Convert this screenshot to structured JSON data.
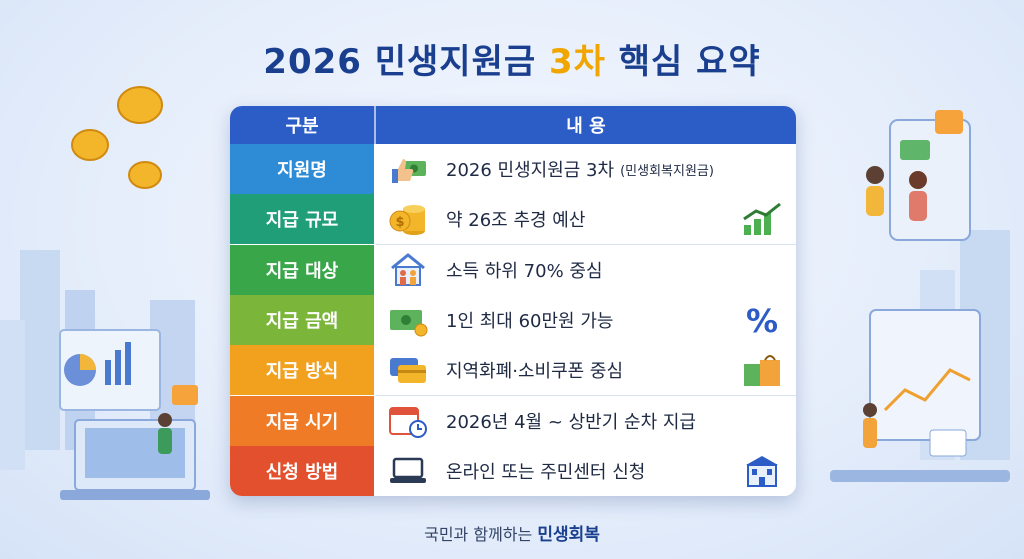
{
  "title_part1": "2026 민생지원금 ",
  "title_part2": "3차",
  "title_part3": " 핵심 요약",
  "header": {
    "left": "구분",
    "right": "내 용"
  },
  "rows": [
    {
      "label": "지원명",
      "value": "2026 민생지원금 3차",
      "note": "(민생회복지원금)",
      "color": "#2e8bd6",
      "icon": "thumbs-up-cash-icon",
      "icon2": ""
    },
    {
      "label": "지급 규모",
      "value": "약 26조 추경 예산",
      "note": "",
      "color": "#1f9e78",
      "icon": "coin-stack-icon",
      "icon2": "growth-chart-icon"
    },
    {
      "label": "지급 대상",
      "value": "소득 하위 70% 중심",
      "note": "",
      "color": "#3aa64a",
      "icon": "family-house-icon",
      "icon2": ""
    },
    {
      "label": "지급 금액",
      "value": "1인 최대 60만원 가능",
      "note": "",
      "color": "#7bb63a",
      "icon": "cash-icon",
      "icon2": "percent-icon"
    },
    {
      "label": "지급 방식",
      "value": "지역화폐·소비쿠폰 중심",
      "note": "",
      "color": "#f2a11f",
      "icon": "cards-icon",
      "icon2": "shopping-bag-icon"
    },
    {
      "label": "지급 시기",
      "value": "2026년 4월 ~ 상반기 순차 지급",
      "note": "",
      "color": "#ef7b26",
      "icon": "calendar-clock-icon",
      "icon2": ""
    },
    {
      "label": "신청 방법",
      "value": "온라인 또는 주민센터 신청",
      "note": "",
      "color": "#e2502d",
      "icon": "laptop-icon",
      "icon2": "building-icon"
    }
  ],
  "footer_prefix": "국민과 함께하는 ",
  "footer_brand": "민생회복",
  "colors": {
    "header": "#2c5cc5",
    "title": "#1a3f8f",
    "accent": "#f0a500"
  }
}
